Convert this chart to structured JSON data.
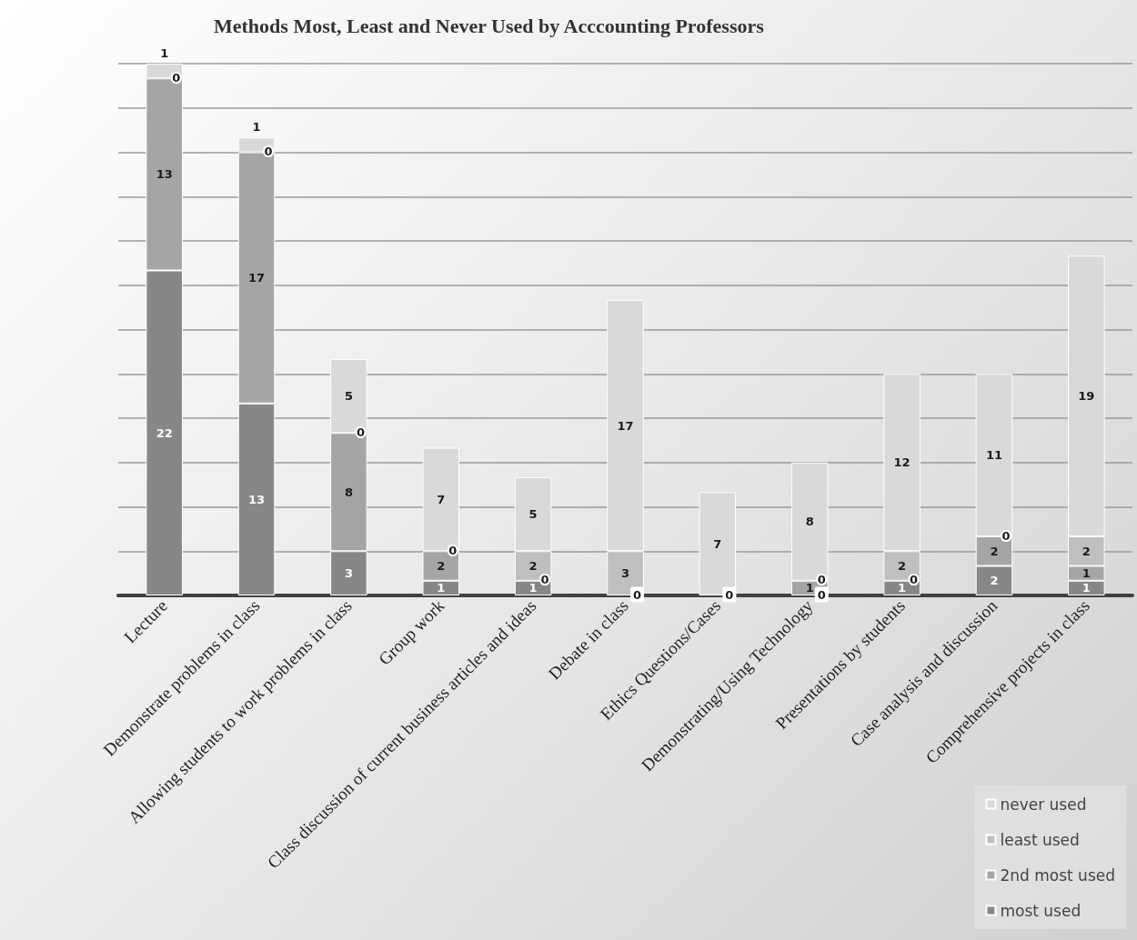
{
  "chart_data": {
    "type": "bar",
    "title": "Methods Most, Least and Never Used by Acccounting Professors",
    "categories": [
      "Lecture",
      "Demonstrate problems in class",
      "Allowing students to work problems in class",
      "Group work",
      "Class discussion of current business articles and ideas",
      "Debate in class",
      "Ethics Questions/Cases",
      "Demonstrating/Using Technology",
      "Presentations by students",
      "Case analysis and discussion",
      "Comprehensive projects in class"
    ],
    "stacked": true,
    "grid": "y",
    "legend": "bottom right",
    "tick_labels": "x",
    "data_labels": true,
    "series": [
      {
        "name": "most used",
        "color": "#878787",
        "values": [
          22,
          13,
          3,
          1,
          1,
          0,
          0,
          0,
          1,
          2,
          1
        ]
      },
      {
        "name": "2nd most used",
        "color": "#a5a5a5",
        "values": [
          13,
          17,
          8,
          2,
          0,
          null,
          null,
          1,
          0,
          2,
          1
        ]
      },
      {
        "name": "least used",
        "color": "#bfbfbf",
        "values": [
          0,
          0,
          0,
          0,
          2,
          3,
          null,
          0,
          2,
          0,
          2
        ]
      },
      {
        "name": "never used",
        "color": "#d9d9d9",
        "values": [
          1,
          1,
          5,
          7,
          5,
          17,
          7,
          8,
          12,
          11,
          19
        ]
      }
    ]
  }
}
